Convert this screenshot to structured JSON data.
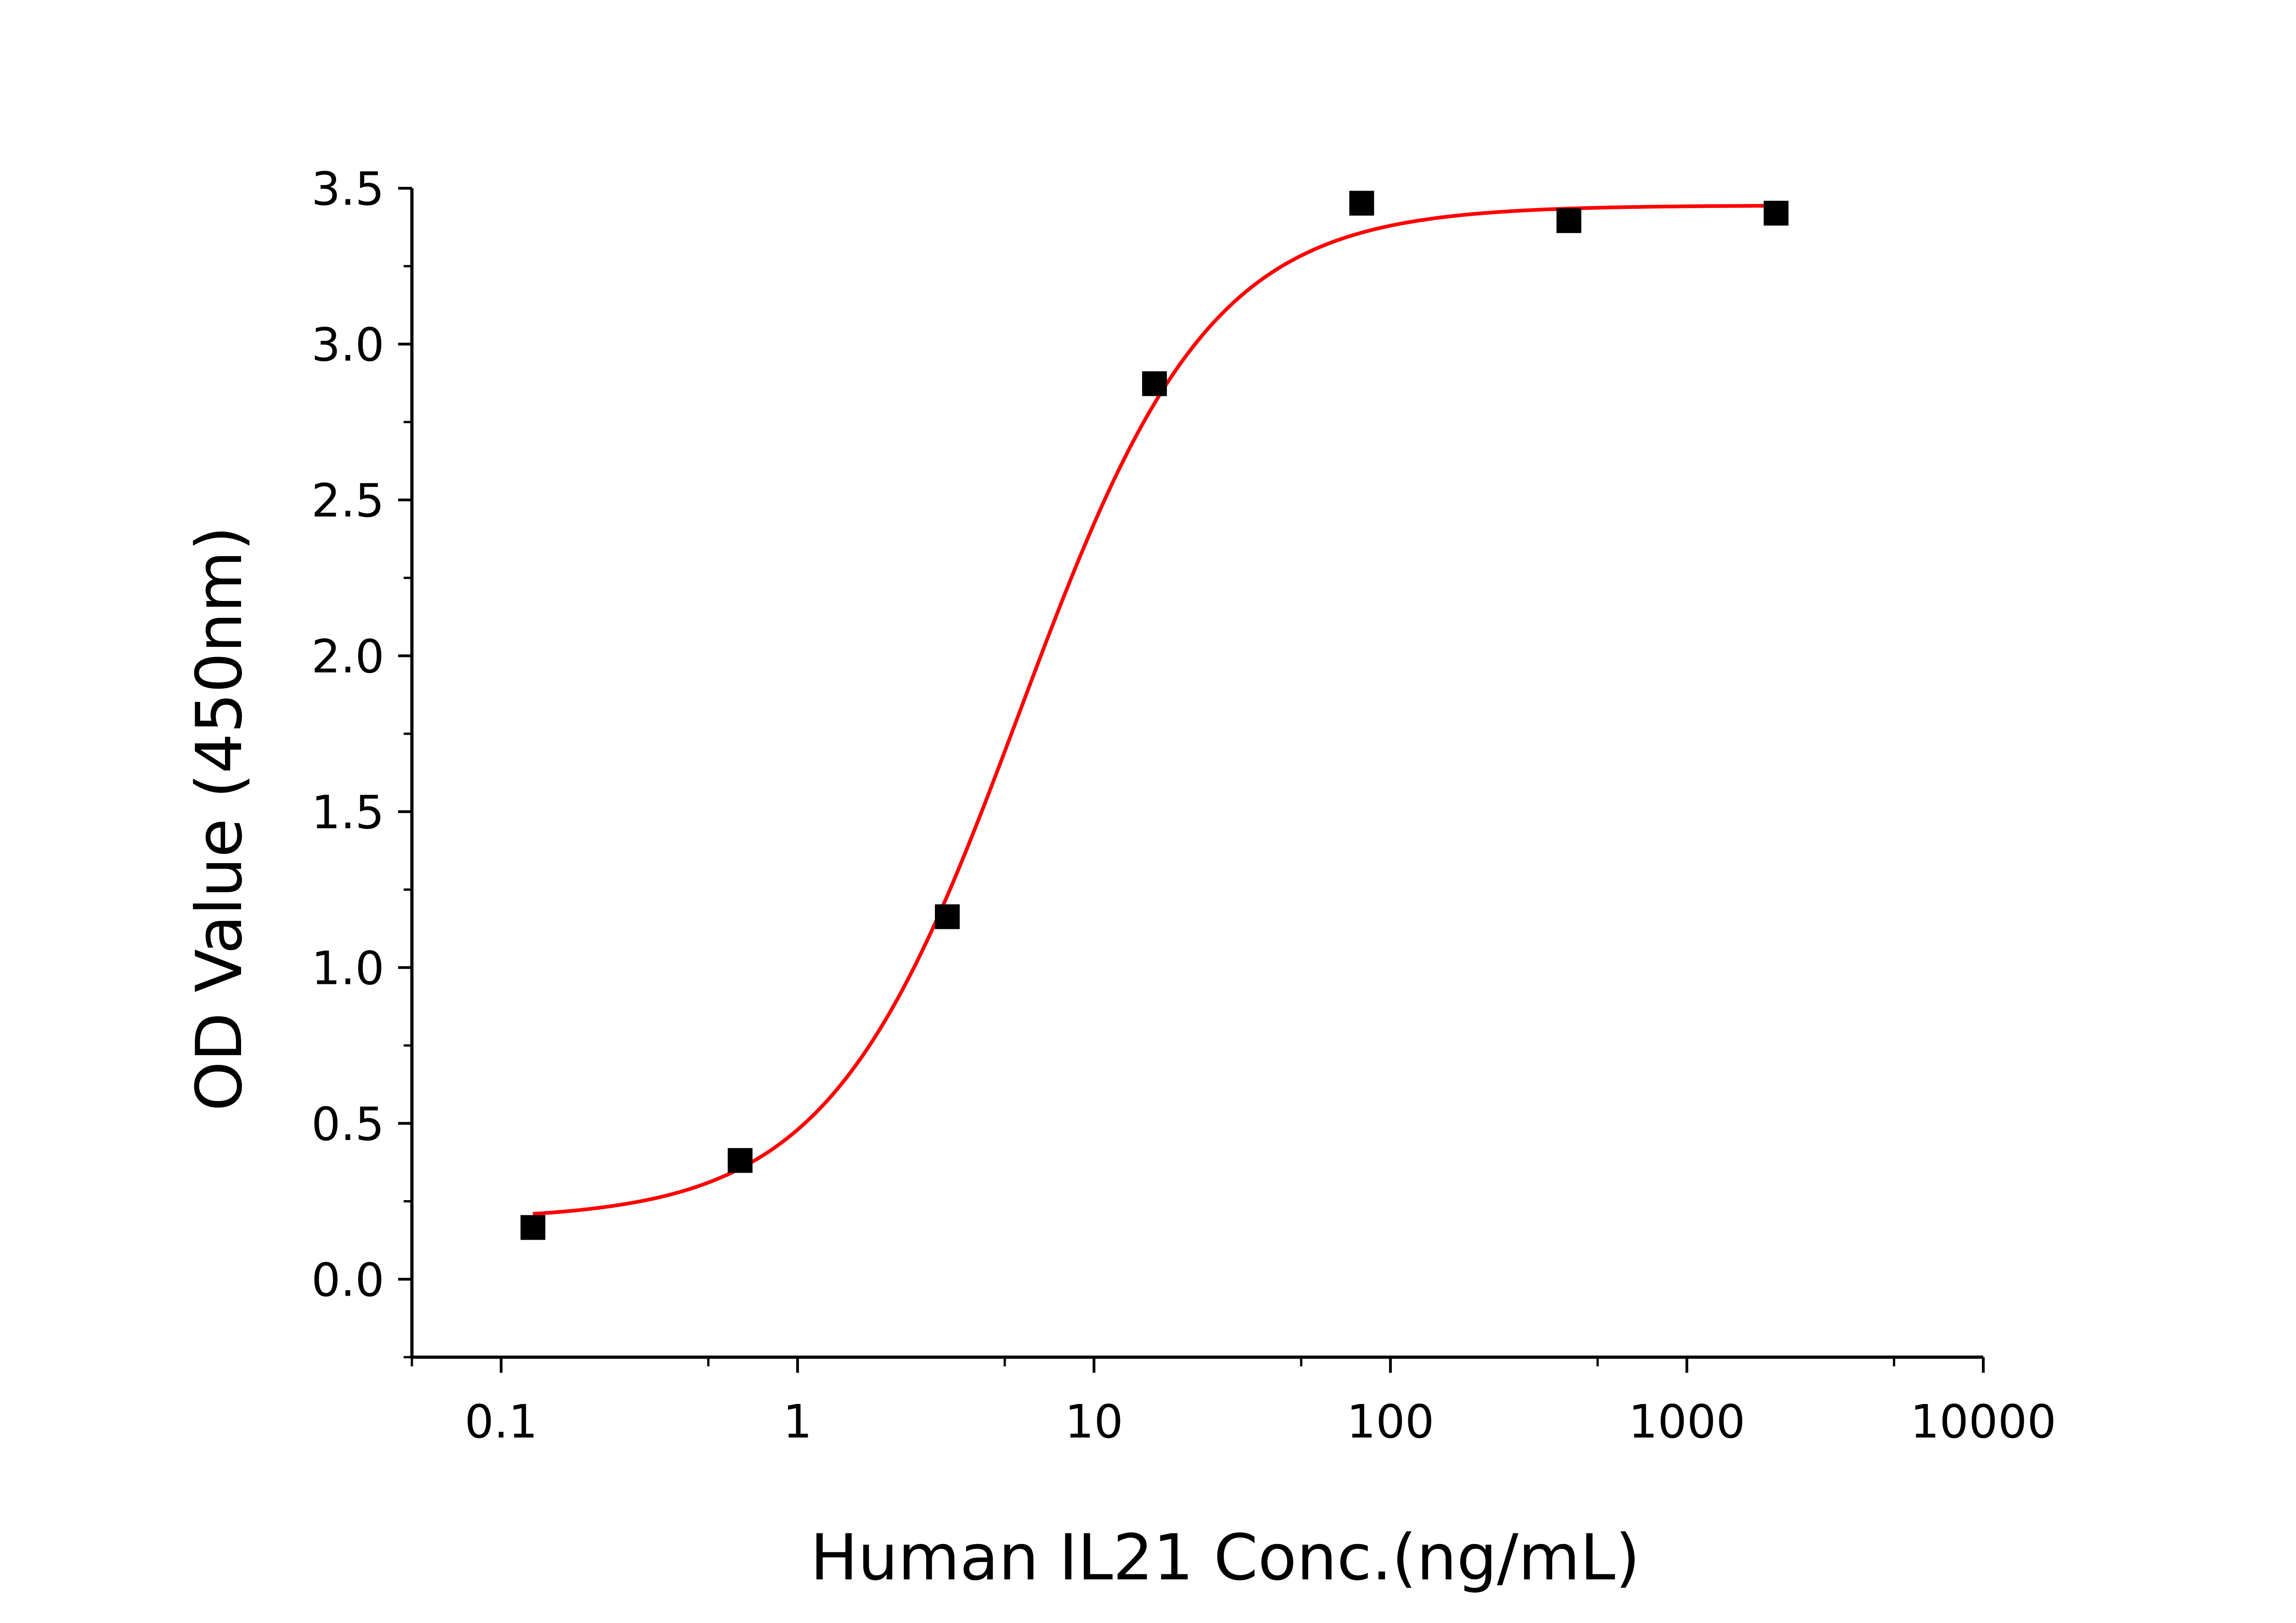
{
  "chart_data": {
    "type": "scatter",
    "title": "",
    "xlabel": "Human IL21 Conc.(ng/mL)",
    "ylabel": "OD Value (450nm)",
    "x_scale": "log",
    "xlim": [
      0.05,
      10000
    ],
    "ylim": [
      -0.25,
      3.5
    ],
    "x_ticks": [
      0.1,
      1,
      10,
      100,
      1000,
      10000
    ],
    "x_tick_labels": [
      "0.1",
      "1",
      "10",
      "100",
      "1000",
      "10000"
    ],
    "y_ticks": [
      0.0,
      0.5,
      1.0,
      1.5,
      2.0,
      2.5,
      3.0,
      3.5
    ],
    "y_tick_labels": [
      "0.0",
      "0.5",
      "1.0",
      "1.5",
      "2.0",
      "2.5",
      "3.0",
      "3.5"
    ],
    "grid": false,
    "legend": "none",
    "series": [
      {
        "kind": "points",
        "marker": "square",
        "color": "#000000",
        "x": [
          0.128,
          0.64,
          3.2,
          16,
          80,
          400,
          2000
        ],
        "y": [
          0.166,
          0.381,
          1.163,
          2.873,
          3.452,
          3.396,
          3.42
        ]
      },
      {
        "kind": "fit_curve",
        "model": "4PL",
        "color": "#ff0000",
        "x_range": [
          0.128,
          2000
        ],
        "params": {
          "bottom": 0.19,
          "top": 3.445,
          "ec50": 5.6,
          "hill": 1.35
        }
      }
    ]
  }
}
